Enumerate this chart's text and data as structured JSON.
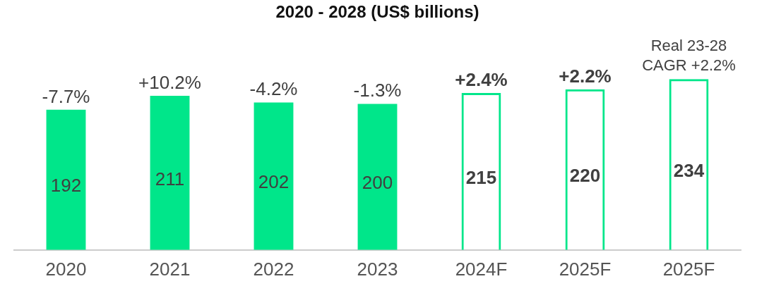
{
  "chart_data": {
    "type": "bar",
    "title": "2020 - 2028 (US$ billions)",
    "categories": [
      "2020",
      "2021",
      "2022",
      "2023",
      "2024F",
      "2025F",
      "2025F"
    ],
    "series": [
      {
        "color": "#00e68a",
        "values": [
          192,
          211,
          202,
          200,
          null,
          null,
          null
        ]
      },
      {
        "color": "#00e68a",
        "values": [
          null,
          null,
          null,
          null,
          215,
          220,
          234
        ]
      }
    ],
    "data_labels": true,
    "grid": false,
    "legend": false,
    "annotations": [
      {
        "text": "-7.7%",
        "x": "2020",
        "y": 192
      },
      {
        "text": "+10.2%",
        "x": "2021",
        "y": 211
      },
      {
        "text": "-4.2%",
        "x": "2022",
        "y": 202
      },
      {
        "text": "-1.3%",
        "x": "2023",
        "y": 200
      },
      {
        "text": "+2.4%",
        "x": "2024F",
        "y": 215
      },
      {
        "text": "+2.2%",
        "x": "2025F",
        "y": 220
      },
      "Real 23-28 CAGR +2.2%"
    ]
  }
}
